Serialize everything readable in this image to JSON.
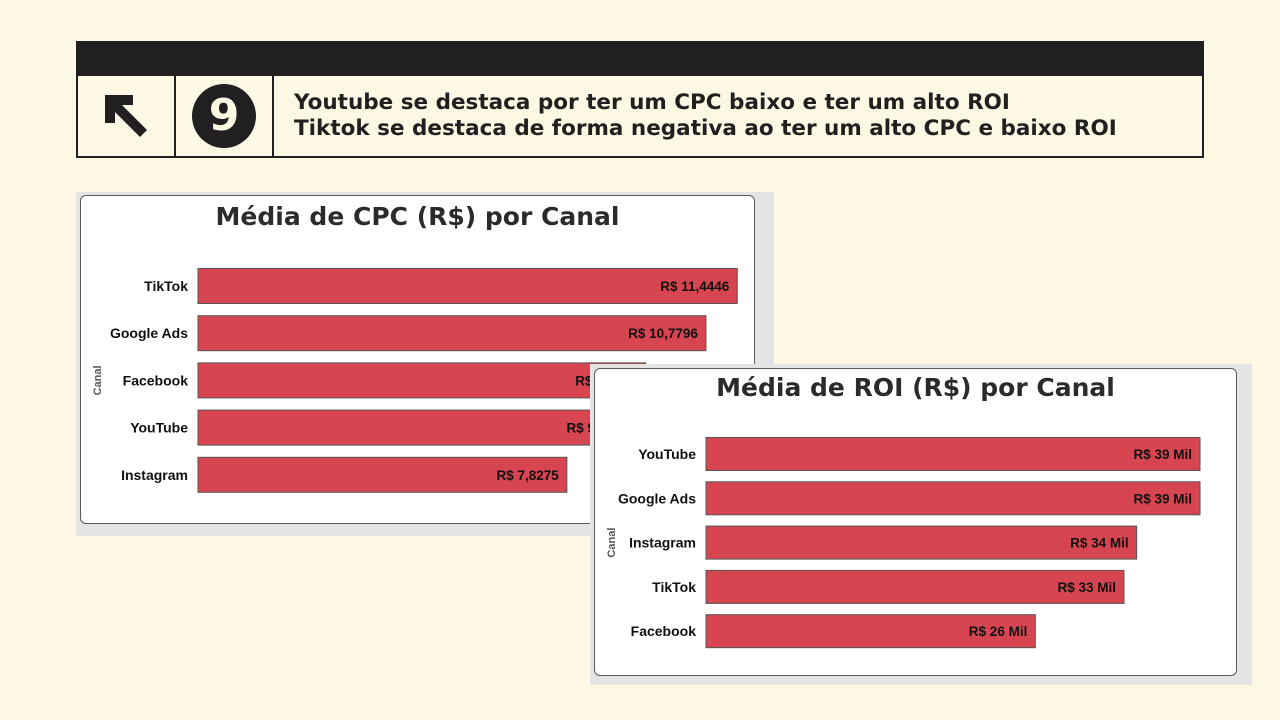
{
  "header": {
    "arrow_icon": "arrow-up-left-icon",
    "step_number": "9",
    "lines": [
      "Youtube se destaca por ter um CPC baixo e ter um alto ROI",
      "Tiktok se destaca de forma negativa ao ter um alto CPC e baixo ROI"
    ],
    "colors": {
      "background": "#fdf8e4",
      "ink": "#221f20"
    }
  },
  "chart_data": [
    {
      "type": "bar",
      "orientation": "horizontal",
      "title": "Média de CPC (R$) por Canal",
      "ylabel": "Canal",
      "categories": [
        "TikTok",
        "Google Ads",
        "Facebook",
        "YouTube",
        "Instagram"
      ],
      "values": [
        11.4446,
        10.7796,
        9.4989,
        9.3125,
        7.8275
      ],
      "data_labels": [
        "R$ 11,4446",
        "R$ 10,7796",
        "R$ 9,4989",
        "R$ 9,3125",
        "R$ 7,8275"
      ],
      "xlim": [
        0,
        12.5
      ],
      "bar_color": "#d64550"
    },
    {
      "type": "bar",
      "orientation": "horizontal",
      "title": "Média de ROI (R$) por Canal",
      "ylabel": "Canal",
      "categories": [
        "YouTube",
        "Google Ads",
        "Instagram",
        "TikTok",
        "Facebook"
      ],
      "values": [
        39,
        39,
        34,
        33,
        26
      ],
      "data_labels": [
        "R$ 39 Mil",
        "R$ 39 Mil",
        "R$ 34 Mil",
        "R$ 33 Mil",
        "R$ 26 Mil"
      ],
      "xlim": [
        0,
        45
      ],
      "bar_color": "#d64550"
    }
  ]
}
